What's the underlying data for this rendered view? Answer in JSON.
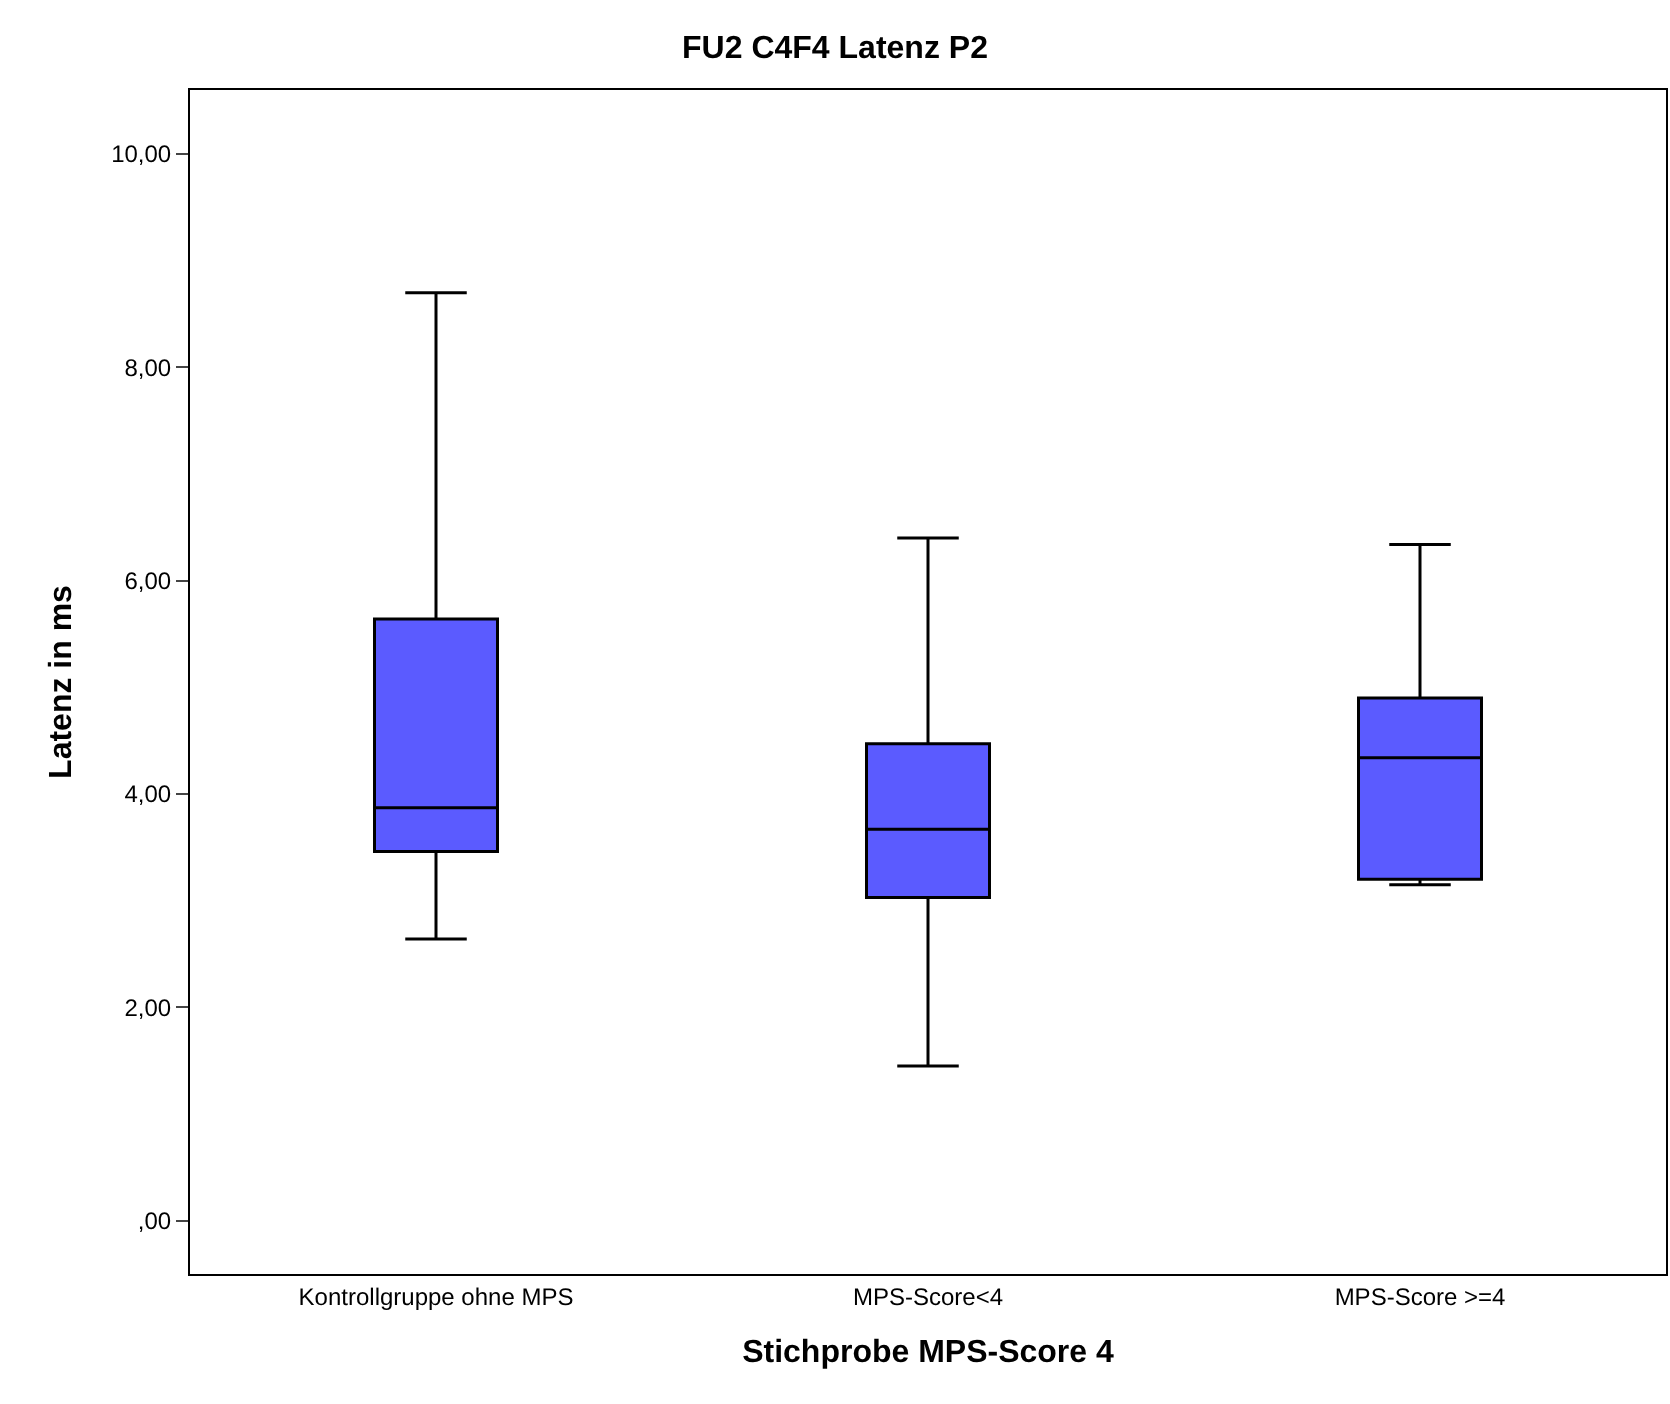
{
  "chart_data": {
    "type": "box",
    "title": "FU2 C4F4 Latenz P2",
    "xlabel": "Stichprobe MPS-Score 4",
    "ylabel": "Latenz in ms",
    "categories": [
      "Kontrollgruppe ohne MPS",
      "MPS-Score<4",
      "MPS-Score >=4"
    ],
    "boxes": [
      {
        "low": 2.64,
        "q1": 3.46,
        "median": 3.87,
        "q3": 5.64,
        "high": 8.7
      },
      {
        "low": 1.45,
        "q1": 3.03,
        "median": 3.67,
        "q3": 4.47,
        "high": 6.4
      },
      {
        "low": 3.15,
        "q1": 3.2,
        "median": 4.34,
        "q3": 4.9,
        "high": 6.34
      }
    ],
    "color": "#5b5bff",
    "ylim": [
      -0.5,
      10.6
    ],
    "yticks": [
      {
        "value": 0,
        "label": ",00"
      },
      {
        "value": 2,
        "label": "2,00"
      },
      {
        "value": 4,
        "label": "4,00"
      },
      {
        "value": 6,
        "label": "6,00"
      },
      {
        "value": 8,
        "label": "8,00"
      },
      {
        "value": 10,
        "label": "10,00"
      }
    ],
    "legend": false
  }
}
